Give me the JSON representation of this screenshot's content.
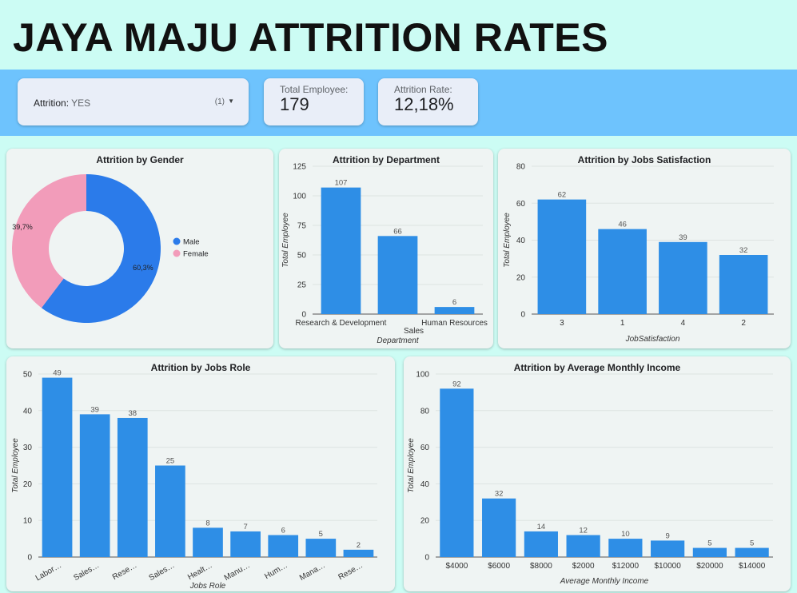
{
  "header": {
    "title": "JAYA MAJU ATTRITION RATES"
  },
  "filter": {
    "label": "Attrition",
    "value": "YES",
    "count": "(1)"
  },
  "kpis": [
    {
      "label": "Total Employee:",
      "value": "179"
    },
    {
      "label": "Attrition Rate:",
      "value": "12,18%"
    }
  ],
  "colors": {
    "bar": "#2e8ee6",
    "male": "#2b7bea",
    "female": "#f29cba"
  },
  "chart_data": [
    {
      "id": "gender",
      "type": "pie",
      "title": "Attrition by Gender",
      "donut": true,
      "slices": [
        {
          "name": "Male",
          "value": 60.3,
          "label": "60,3%",
          "color": "#2b7bea"
        },
        {
          "name": "Female",
          "value": 39.7,
          "label": "39,7%",
          "color": "#f29cba"
        }
      ],
      "legend": "right"
    },
    {
      "id": "dept",
      "type": "bar",
      "title": "Attrition by Department",
      "categories": [
        "Research & Development",
        "Sales",
        "Human Resources"
      ],
      "values": [
        107,
        66,
        6
      ],
      "xlabel": "Department",
      "ylabel": "Total Employee",
      "ylim": [
        0,
        125
      ],
      "yticks": [
        0,
        25,
        50,
        75,
        100,
        125
      ],
      "grid": true
    },
    {
      "id": "sat",
      "type": "bar",
      "title": "Attrition by Jobs Satisfaction",
      "categories": [
        "3",
        "1",
        "4",
        "2"
      ],
      "values": [
        62,
        46,
        39,
        32
      ],
      "xlabel": "JobSatisfaction",
      "ylabel": "Total Employee",
      "ylim": [
        0,
        80
      ],
      "yticks": [
        0,
        20,
        40,
        60,
        80
      ],
      "grid": true
    },
    {
      "id": "role",
      "type": "bar",
      "title": "Attrition by Jobs Role",
      "categories": [
        "Labor…",
        "Sales…",
        "Rese…",
        "Sales…",
        "Healt…",
        "Manu…",
        "Hum…",
        "Mana…",
        "Rese…"
      ],
      "values": [
        49,
        39,
        38,
        25,
        8,
        7,
        6,
        5,
        2
      ],
      "xlabel": "Jobs Role",
      "ylabel": "Total Employee",
      "ylim": [
        0,
        50
      ],
      "yticks": [
        0,
        10,
        20,
        30,
        40,
        50
      ],
      "grid": true
    },
    {
      "id": "inc",
      "type": "bar",
      "title": "Attrition by Average Monthly Income",
      "categories": [
        "$4000",
        "$6000",
        "$8000",
        "$2000",
        "$12000",
        "$10000",
        "$20000",
        "$14000"
      ],
      "values": [
        92,
        32,
        14,
        12,
        10,
        9,
        5,
        5
      ],
      "xlabel": "Average Monthly Income",
      "ylabel": "Total Employee",
      "ylim": [
        0,
        100
      ],
      "yticks": [
        0,
        20,
        40,
        60,
        80,
        100
      ],
      "grid": true
    }
  ]
}
